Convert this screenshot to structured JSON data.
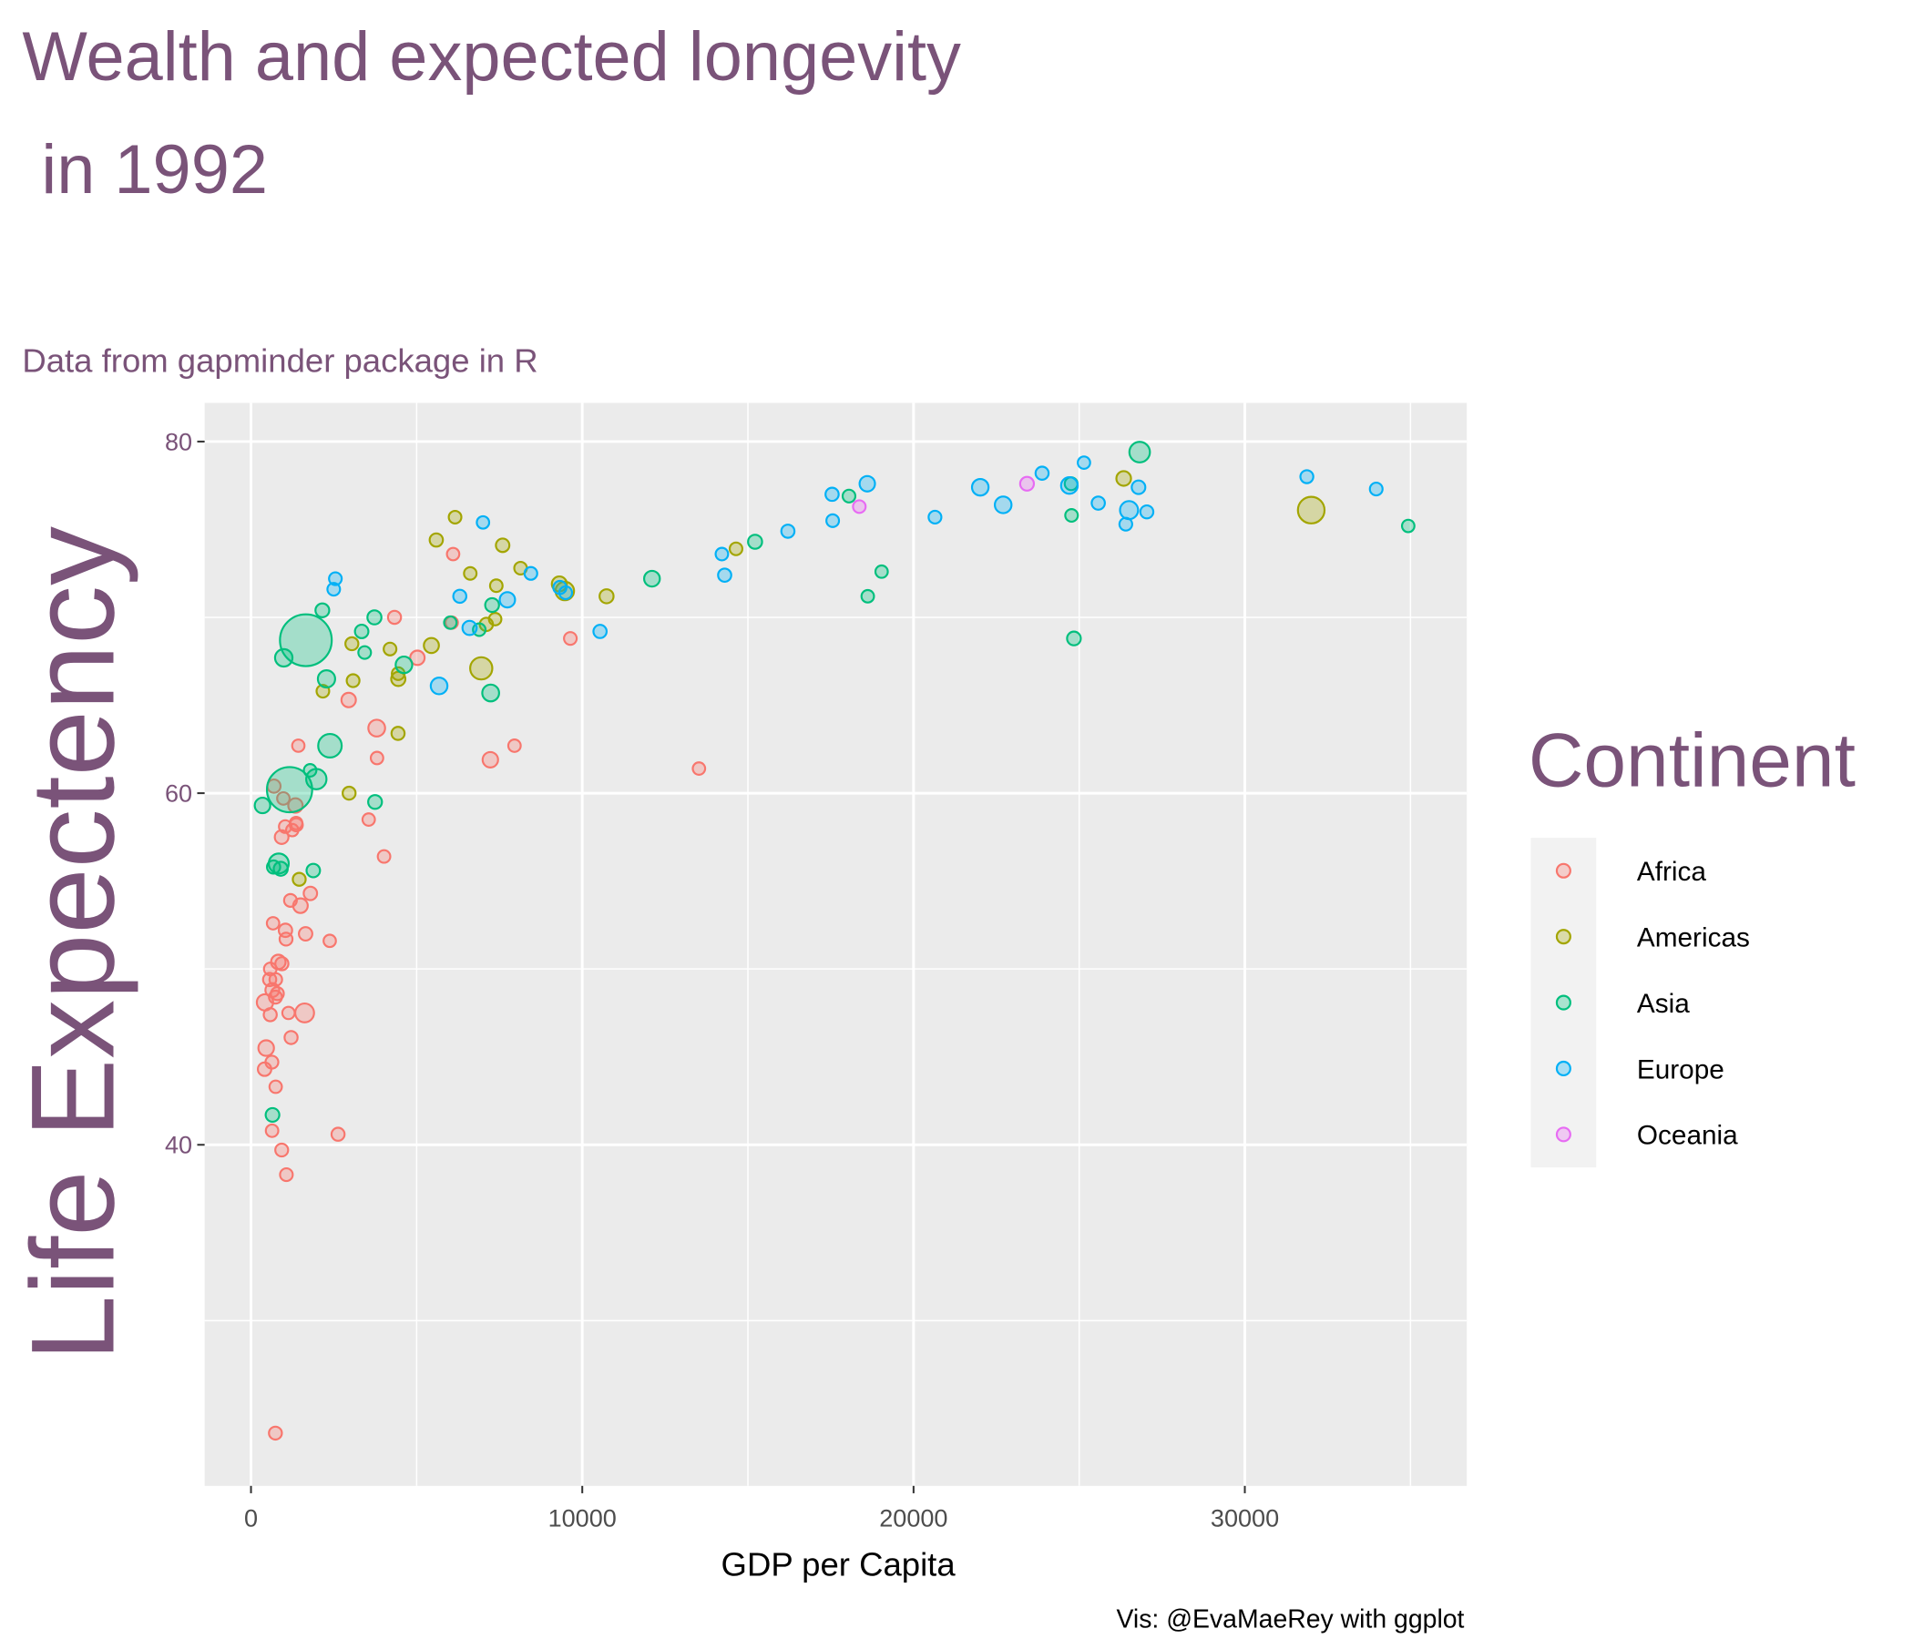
{
  "chart_data": {
    "type": "scatter",
    "title": "Wealth and expected longevity\n\n in 1992",
    "subtitle": "Data from gapminder package in R",
    "xlabel": "GDP per Capita",
    "ylabel": "Life Expectency",
    "caption": "Vis: @EvaMaeRey with ggplot",
    "legend_title": "Continent",
    "legend": "right",
    "grid": true,
    "xlim": [
      -1400,
      36700
    ],
    "ylim": [
      20.6,
      82.2
    ],
    "xticks": [
      0,
      10000,
      20000,
      30000
    ],
    "yticks": [
      40,
      60,
      80
    ],
    "series": [
      {
        "name": "Africa",
        "color": "#F8766D",
        "x": [
          5023,
          2628,
          1191,
          7954,
          932,
          631,
          1793,
          748,
          1058,
          1246,
          458,
          4016,
          1648,
          2377,
          3795,
          1132,
          582,
          422,
          13522,
          666,
          925,
          795,
          745,
          1341,
          977,
          636,
          9640,
          1040,
          563,
          739,
          1361,
          6058,
          2948,
          410,
          3804,
          581,
          1619,
          6101,
          737,
          1429,
          1367,
          1068,
          927,
          7225,
          1493,
          3553,
          825,
          1034,
          4332,
          644,
          1210,
          693
        ],
        "values": [
          67.7,
          40.6,
          53.9,
          62.7,
          50.3,
          44.7,
          54.3,
          49.4,
          51.7,
          57.9,
          45.5,
          56.4,
          52.0,
          51.6,
          63.7,
          47.5,
          50.0,
          48.1,
          61.4,
          52.6,
          57.5,
          48.6,
          43.3,
          59.3,
          59.7,
          40.8,
          68.8,
          52.2,
          49.4,
          48.4,
          58.3,
          69.7,
          65.3,
          44.3,
          62.0,
          47.4,
          47.5,
          73.6,
          23.6,
          62.7,
          58.2,
          38.3,
          39.7,
          61.9,
          53.6,
          58.5,
          50.4,
          58.1,
          70.0,
          48.8,
          46.1,
          60.4
        ],
        "sizes": [
          26.3,
          8.7,
          5.0,
          1.3,
          8.9,
          5.8,
          12.5,
          3.3,
          6.4,
          0.45,
          41.7,
          2.4,
          12.8,
          0.38,
          59.4,
          0.39,
          3.7,
          52.1,
          1.0,
          1.0,
          16.3,
          7.0,
          1.05,
          25.0,
          1.8,
          1.9,
          4.4,
          12.2,
          10.0,
          8.4,
          2.1,
          1.1,
          25.6,
          13.2,
          1.55,
          8.4,
          93.4,
          0.62,
          7.3,
          0.13,
          8.3,
          4.3,
          6.1,
          40.0,
          28.2,
          0.96,
          26.6,
          3.7,
          8.5,
          18.3,
          8.4,
          10.7
        ]
      },
      {
        "name": "Americas",
        "color": "#A3A500",
        "x": [
          9308,
          2962,
          6950,
          26343,
          7596,
          5445,
          6160,
          5593,
          3045,
          7104,
          4444,
          4439,
          1456,
          3082,
          7405,
          9472,
          2170,
          6619,
          4197,
          4446,
          14641,
          7370,
          32004,
          8137,
          10733
        ],
        "values": [
          71.9,
          60.0,
          67.1,
          77.9,
          74.1,
          68.4,
          75.7,
          74.4,
          68.5,
          69.6,
          66.8,
          63.4,
          55.1,
          66.4,
          71.8,
          71.5,
          65.8,
          72.5,
          68.2,
          66.5,
          73.9,
          69.9,
          76.1,
          72.8,
          71.2
        ],
        "sizes": [
          34.0,
          6.9,
          156.0,
          28.5,
          13.6,
          34.2,
          3.2,
          10.7,
          7.4,
          10.7,
          5.3,
          8.9,
          6.3,
          5.1,
          2.4,
          88.1,
          4.0,
          2.5,
          4.5,
          22.4,
          3.6,
          1.2,
          256.9,
          3.2,
          20.3
        ]
      },
      {
        "name": "Asia",
        "color": "#00BF7D",
        "x": [
          649,
          19036,
          838,
          682,
          1656,
          24757,
          1164,
          2383,
          7235,
          3745,
          18051,
          26825,
          3431,
          3726,
          12104,
          34932,
          6890,
          7278,
          1785,
          347,
          898,
          18617,
          1972,
          2279,
          24841,
          24769,
          2154,
          3341,
          15216,
          4617,
          989,
          6017,
          1880
        ],
        "values": [
          41.7,
          72.6,
          56.0,
          55.8,
          68.7,
          77.6,
          60.2,
          62.7,
          65.7,
          59.5,
          76.9,
          79.4,
          68.0,
          70.0,
          72.2,
          75.2,
          69.3,
          70.7,
          61.3,
          59.3,
          55.7,
          71.2,
          60.8,
          66.5,
          68.8,
          75.8,
          70.4,
          69.2,
          74.3,
          67.3,
          67.7,
          69.7,
          55.6
        ],
        "sizes": [
          16.3,
          0.53,
          113.7,
          10.2,
          1165.0,
          5.9,
          872.0,
          184.8,
          60.4,
          17.9,
          4.9,
          124.3,
          3.9,
          20.7,
          43.8,
          1.4,
          3.2,
          18.3,
          2.3,
          40.5,
          20.3,
          1.9,
          120.0,
          67.2,
          16.9,
          3.2,
          17.6,
          13.2,
          20.7,
          56.7,
          69.9,
          1.9,
          13.4
        ]
      },
      {
        "name": "Europe",
        "color": "#00B0F6",
        "x": [
          2497,
          27042,
          25576,
          2547,
          6303,
          8448,
          14298,
          26407,
          20647,
          24704,
          26505,
          17541,
          10536,
          25144,
          17559,
          22014,
          7003,
          26791,
          33966,
          7739,
          16207,
          6598,
          9325,
          9498,
          14214,
          18603,
          23880,
          31872,
          5678,
          22705
        ],
        "values": [
          71.6,
          76.0,
          76.5,
          72.2,
          71.2,
          72.5,
          72.4,
          75.3,
          75.7,
          77.5,
          76.1,
          77.0,
          69.2,
          78.8,
          75.5,
          77.4,
          75.4,
          77.4,
          77.3,
          71.0,
          74.9,
          69.4,
          71.7,
          71.4,
          73.6,
          77.6,
          78.2,
          78.0,
          66.1,
          76.4
        ],
        "sizes": [
          3.3,
          7.9,
          10.0,
          4.3,
          8.7,
          4.5,
          10.3,
          5.2,
          5.0,
          57.4,
          80.6,
          10.3,
          10.3,
          0.26,
          3.6,
          56.8,
          0.62,
          15.2,
          4.3,
          38.4,
          9.9,
          22.8,
          9.8,
          5.3,
          2.0,
          39.5,
          8.7,
          6.9,
          58.2,
          57.9
        ]
      },
      {
        "name": "Oceania",
        "color": "#E76BF3",
        "x": [
          23425,
          18363
        ],
        "values": [
          77.6,
          76.3
        ],
        "sizes": [
          17.5,
          3.4
        ]
      }
    ]
  }
}
